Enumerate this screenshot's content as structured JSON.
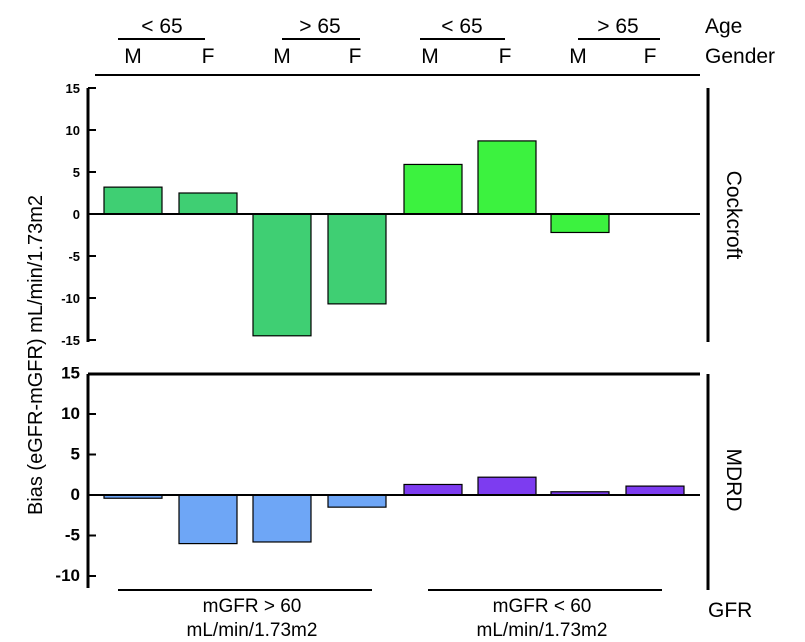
{
  "header": {
    "age_row_label": "Age",
    "gender_row_label": "Gender",
    "age_groups": [
      "< 65",
      "> 65",
      "< 65",
      "> 65"
    ],
    "genders": [
      "M",
      "F",
      "M",
      "F",
      "M",
      "F",
      "M",
      "F"
    ]
  },
  "footer": {
    "row_label": "GFR",
    "groups": [
      {
        "line1": "mGFR > 60",
        "line2": "mL/min/1.73m2"
      },
      {
        "line1": "mGFR < 60",
        "line2": "mL/min/1.73m2"
      }
    ]
  },
  "colors": {
    "cockcroft_gfr_gt60": "#3fcf73",
    "cockcroft_gfr_lt60": "#3cf23f",
    "mdrd_gfr_gt60": "#6ea6f6",
    "mdrd_gfr_lt60": "#7d3cf0"
  },
  "chart_data": [
    {
      "type": "bar",
      "panel_label": "Cockcroft",
      "ylabel": "Bias (eGFR-mGFR) mL/min/1.73m2",
      "ylim": [
        -15,
        15
      ],
      "yticks": [
        "15",
        "10",
        "5",
        "0",
        "-5",
        "-10",
        "-15"
      ],
      "categories": [
        "mGFR > 60, < 65, M",
        "mGFR > 60, < 65, F",
        "mGFR > 60, > 65, M",
        "mGFR > 60, > 65, F",
        "mGFR < 60, < 65, M",
        "mGFR < 60, < 65, F",
        "mGFR < 60, > 65, M",
        "mGFR < 60, > 65, F"
      ],
      "values": [
        3.2,
        2.5,
        -14.5,
        -10.7,
        5.9,
        8.7,
        -2.2,
        0
      ]
    },
    {
      "type": "bar",
      "panel_label": "MDRD",
      "ylabel": "Bias (eGFR-mGFR) mL/min/1.73m2",
      "ylim": [
        -11,
        15
      ],
      "yticks": [
        "15",
        "10",
        "5",
        "0",
        "-5",
        "-10"
      ],
      "categories": [
        "mGFR > 60, < 65, M",
        "mGFR > 60, < 65, F",
        "mGFR > 60, > 65, M",
        "mGFR > 60, > 65, F",
        "mGFR < 60, < 65, M",
        "mGFR < 60, < 65, F",
        "mGFR < 60, > 65, M",
        "mGFR < 60, > 65, F"
      ],
      "values": [
        -0.4,
        -6.0,
        -5.8,
        -1.5,
        1.3,
        2.2,
        0.4,
        1.1
      ]
    }
  ]
}
